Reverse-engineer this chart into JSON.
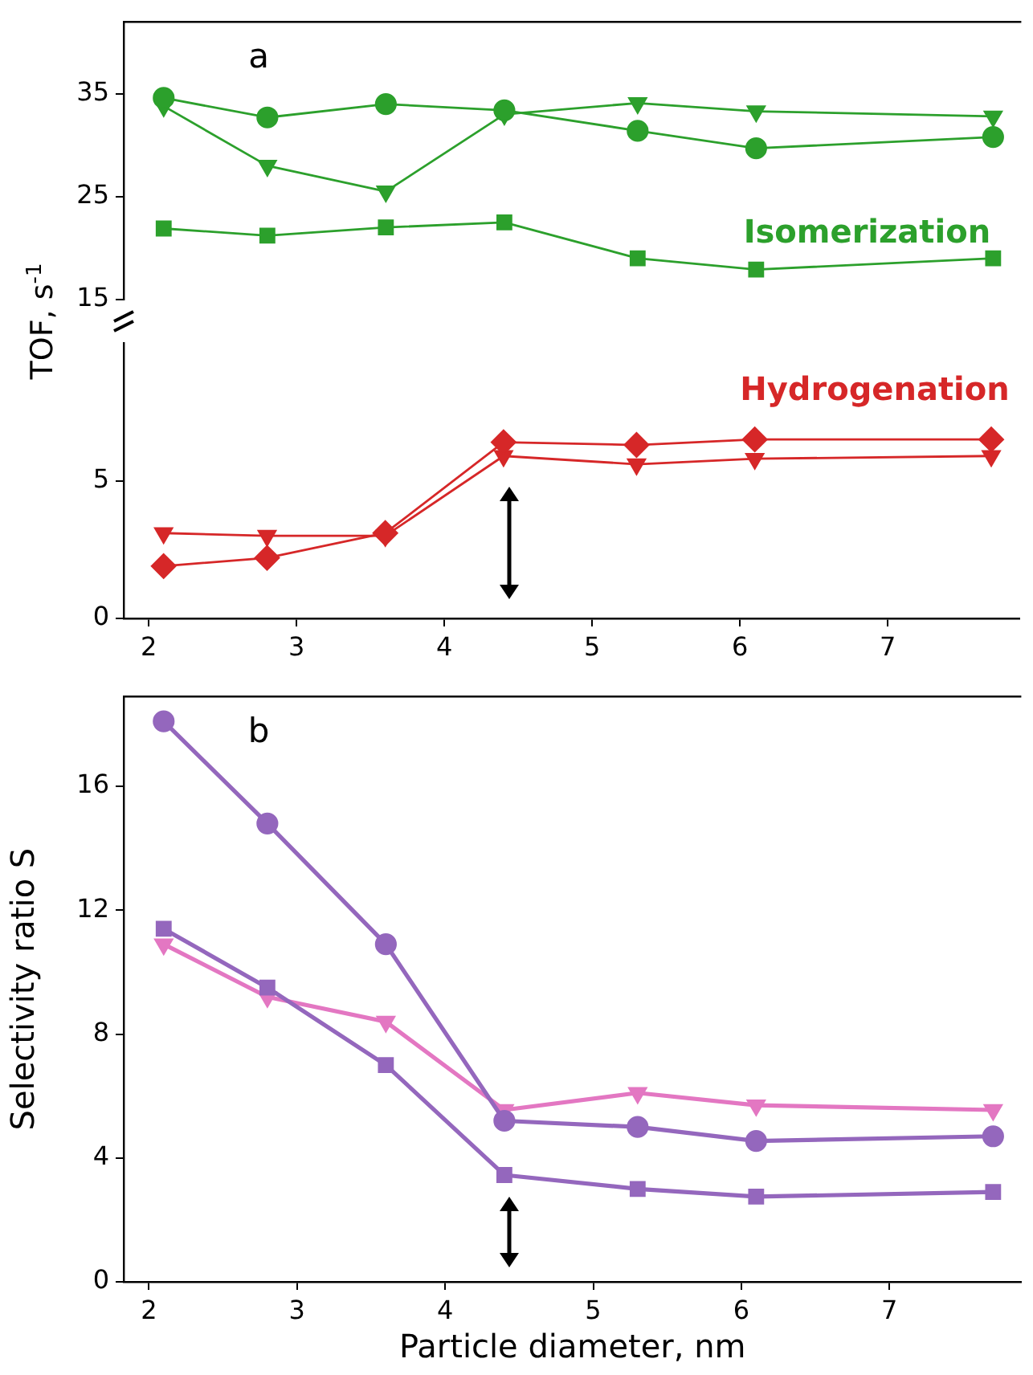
{
  "chart_data": [
    {
      "type": "line",
      "tick_labels": "y",
      "xlim": [
        1.83,
        7.89
      ],
      "ylim": [
        15,
        42
      ],
      "yticks": [
        15,
        25,
        35
      ],
      "annotations": [
        "a",
        "Isomerization"
      ],
      "x": [
        2.1,
        2.8,
        3.6,
        4.4,
        5.3,
        6.1,
        7.7
      ],
      "series": [
        {
          "color": "#2ca02c",
          "marker": "circle",
          "values": [
            34.6,
            32.7,
            34.0,
            33.4,
            31.4,
            29.7,
            30.8
          ]
        },
        {
          "color": "#2ca02c",
          "marker": "triangle",
          "values": [
            33.8,
            28.0,
            25.5,
            33.0,
            34.1,
            33.3,
            32.8
          ]
        },
        {
          "color": "#2ca02c",
          "marker": "square",
          "values": [
            21.9,
            21.2,
            22.0,
            22.5,
            19.0,
            17.9,
            19.0
          ]
        }
      ]
    },
    {
      "type": "line",
      "ylabel": "TOF, s$^{-1}$",
      "xlim": [
        1.83,
        7.89
      ],
      "xticks": [
        2,
        3,
        4,
        5,
        6,
        7
      ],
      "ylim": [
        0,
        10
      ],
      "yticks": [
        0,
        5
      ],
      "annotations": [
        "Hydrogenation"
      ],
      "x": [
        2.1,
        2.8,
        3.6,
        4.4,
        5.3,
        6.1,
        7.7
      ],
      "series": [
        {
          "color": "#d62728",
          "marker": "diamond",
          "values": [
            1.9,
            2.2,
            3.1,
            6.4,
            6.3,
            6.5,
            6.5
          ]
        },
        {
          "color": "#d62728",
          "marker": "triangle",
          "values": [
            3.1,
            3.0,
            3.0,
            5.9,
            5.6,
            5.8,
            5.9
          ]
        }
      ]
    },
    {
      "type": "line",
      "xlabel": "Particle diameter, nm",
      "ylabel": "Selectivity ratio S",
      "xlim": [
        1.83,
        7.89
      ],
      "xticks": [
        2,
        3,
        4,
        5,
        6,
        7
      ],
      "ylim": [
        0,
        18.9
      ],
      "yticks": [
        0,
        4,
        8,
        12,
        16
      ],
      "annotations": [
        "b"
      ],
      "x": [
        2.1,
        2.8,
        3.6,
        4.4,
        5.3,
        6.1,
        7.7
      ],
      "series": [
        {
          "color": "#9467bd",
          "marker": "circle",
          "values": [
            18.1,
            14.8,
            10.9,
            5.2,
            5.0,
            4.55,
            4.7
          ]
        },
        {
          "color": "#9467bd",
          "marker": "square",
          "values": [
            11.4,
            9.5,
            7.0,
            3.45,
            3.0,
            2.75,
            2.9
          ]
        },
        {
          "color": "#e377c2",
          "marker": "triangle",
          "values": [
            10.9,
            9.2,
            8.4,
            5.55,
            6.1,
            5.7,
            5.55
          ]
        }
      ]
    }
  ]
}
